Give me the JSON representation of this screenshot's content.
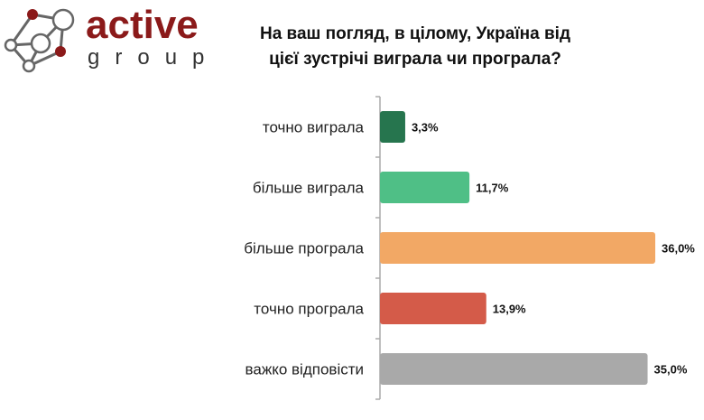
{
  "logo": {
    "line1": "active",
    "line2": "group"
  },
  "chart_data": {
    "type": "bar",
    "orientation": "horizontal",
    "title": "На ваш погляд, в цілому, Україна від цієї зустрічі виграла чи програла?",
    "title_lines": [
      "На ваш погляд, в цілому, Україна від",
      "цієї зустрічі виграла чи програла?"
    ],
    "categories": [
      "точно виграла",
      "більше виграла",
      "більше програла",
      "точно програла",
      "важко відповісти"
    ],
    "values": [
      3.3,
      11.7,
      36.0,
      13.9,
      35.0
    ],
    "value_labels": [
      "3,3%",
      "11,7%",
      "36,0%",
      "13,9%",
      "35,0%"
    ],
    "colors": [
      "#26754e",
      "#4fbf86",
      "#f2a865",
      "#d45b49",
      "#a9a9a9"
    ],
    "xlabel": "",
    "ylabel": "",
    "xlim": [
      0,
      36
    ],
    "grid": false,
    "legend": "none"
  }
}
